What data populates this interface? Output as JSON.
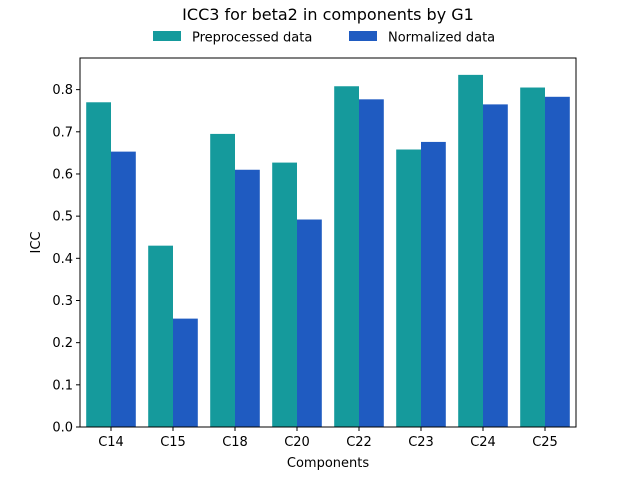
{
  "chart_data": {
    "type": "bar",
    "title": "ICC3 for beta2 in components by G1",
    "xlabel": "Components",
    "ylabel": "ICC",
    "categories": [
      "C14",
      "C15",
      "C18",
      "C20",
      "C22",
      "C23",
      "C24",
      "C25"
    ],
    "series": [
      {
        "name": "Preprocessed data",
        "color": "#159a9c",
        "values": [
          0.77,
          0.43,
          0.695,
          0.627,
          0.808,
          0.658,
          0.835,
          0.805
        ]
      },
      {
        "name": "Normalized data",
        "color": "#1f5bc1",
        "values": [
          0.653,
          0.257,
          0.61,
          0.492,
          0.777,
          0.676,
          0.765,
          0.783
        ]
      }
    ],
    "ylim": [
      0,
      0.875
    ],
    "yticks": [
      "0.0",
      "0.1",
      "0.2",
      "0.3",
      "0.4",
      "0.5",
      "0.6",
      "0.7",
      "0.8"
    ],
    "grid": false,
    "legend": "top-center"
  }
}
